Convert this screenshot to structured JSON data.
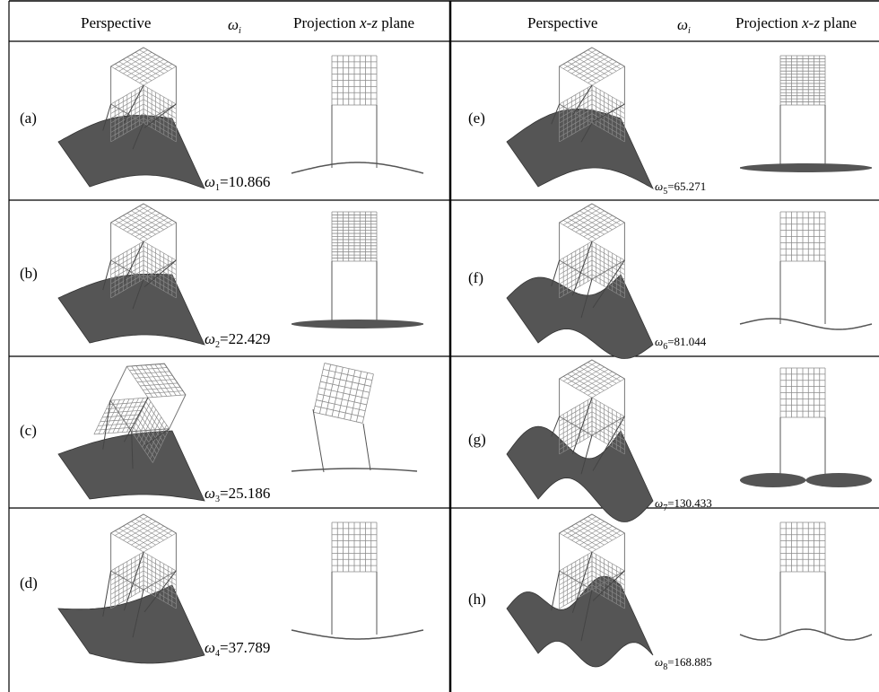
{
  "headers": {
    "perspective": "Perspective",
    "omega": "ω",
    "omega_sub": "i",
    "projection_prefix": "Projection ",
    "projection_axes": "x-z",
    "projection_suffix": " plane"
  },
  "panels": [
    {
      "label": "(a)",
      "omega_symbol": "ω",
      "mode_index": "1",
      "frequency": "=10.866"
    },
    {
      "label": "(b)",
      "omega_symbol": "ω",
      "mode_index": "2",
      "frequency": "=22.429"
    },
    {
      "label": "(c)",
      "omega_symbol": "ω",
      "mode_index": "3",
      "frequency": "=25.186"
    },
    {
      "label": "(d)",
      "omega_symbol": "ω",
      "mode_index": "4",
      "frequency": "=37.789"
    },
    {
      "label": "(e)",
      "omega_symbol": "ω",
      "mode_index": "5",
      "frequency": "=65.271"
    },
    {
      "label": "(f)",
      "omega_symbol": "ω",
      "mode_index": "6",
      "frequency": "=81.044"
    },
    {
      "label": "(g)",
      "omega_symbol": "ω",
      "mode_index": "7",
      "frequency": "=130.433"
    },
    {
      "label": "(h)",
      "omega_symbol": "ω",
      "mode_index": "8",
      "frequency": "=168.885"
    }
  ],
  "colors": {
    "border": "#000000",
    "plate": "#555555",
    "grid": "#8c8c8c",
    "strut": "#444444"
  }
}
